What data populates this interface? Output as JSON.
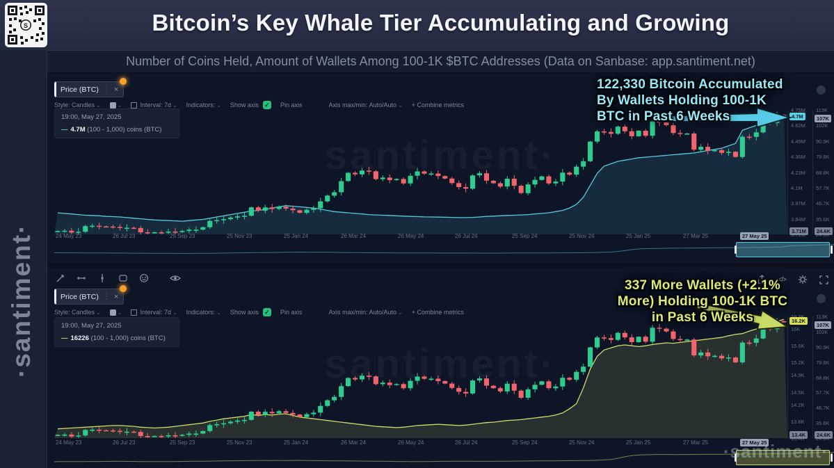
{
  "header": {
    "title": "Bitcoin’s Key Whale Tier Accumulating and Growing"
  },
  "subtitle": "Number of Coins Held, Amount of Wallets Among 100-1K $BTC Addresses (Data on Sanbase: app.santiment.net)",
  "sidebar": {
    "brand": "·santiment·"
  },
  "watermarks": {
    "center": "santiment·",
    "corner": "·santiment·"
  },
  "toolbar": {
    "style": "Style: Candles",
    "interval": "Interval: 7d",
    "indicators": "Indicators:",
    "show_axis": "Show axis",
    "check": "✓",
    "pin_axis": "Pin axis",
    "axis_maxmin": "Axis max/min: Auto/Auto",
    "combine": "+   Combine metrics",
    "chevron": "⌄"
  },
  "charts": {
    "top": {
      "tab_label": "Price (BTC)",
      "tab_close": "×",
      "tab_dots": "⋮",
      "tooltip": {
        "date": "19:00, May 27, 2025",
        "dash": "—",
        "value": "4.7M",
        "suffix": "(100 - 1,000) coins (BTC)"
      }
    },
    "bottom": {
      "tab_label": "Price (BTC)",
      "tab_close": "×",
      "tab_dots": "⋮",
      "tooltip": {
        "date": "19:00, May 27, 2025",
        "dash": "—",
        "value": "16226",
        "suffix": "(100 - 1,000) coins (BTC)"
      }
    }
  },
  "annotations": {
    "top": {
      "lines": [
        "122,330 Bitcoin Accumulated",
        "By Wallets Holding 100-1K",
        "BTC in Past 6 Weeks"
      ]
    },
    "bottom": {
      "lines": [
        "337 More Wallets (+2.1%",
        "More) Holding 100-1K BTC",
        "in Past 6 Weeks"
      ]
    }
  },
  "chart_data": [
    {
      "type": "candlestick+line",
      "title": "Price (BTC) candles with (100 - 1,000) coins held overlay",
      "interval": "7d",
      "x_labels": [
        "24 May 23",
        "26 Jul 23",
        "25 Sep 23",
        "25 Nov 23",
        "25 Jan 24",
        "26 Mar 24",
        "26 May 24",
        "26 Jul 24",
        "25 Sep 24",
        "25 Nov 24",
        "25 Jan 25",
        "27 Mar 25"
      ],
      "x_current": "27 May 25",
      "price_series": {
        "name": "Price (BTC)",
        "unit": "K USD",
        "closes": [
          26.9,
          27.2,
          25.8,
          26.5,
          30.5,
          30.7,
          30.3,
          30.2,
          29.9,
          29.2,
          29.3,
          29.1,
          26.1,
          26.0,
          26.1,
          25.8,
          26.6,
          26.5,
          27.0,
          27.9,
          27.9,
          29.7,
          34.1,
          34.7,
          35.4,
          36.5,
          37.4,
          37.8,
          43.8,
          41.4,
          43.7,
          42.6,
          44.2,
          42.9,
          41.7,
          39.9,
          42.0,
          43.1,
          48.0,
          52.1,
          54.5,
          62.4,
          68.3,
          67.2,
          69.9,
          69.4,
          63.8,
          64.9,
          63.1,
          63.9,
          60.8,
          66.2,
          69.3,
          67.7,
          67.8,
          66.0,
          64.2,
          61.0,
          58.2,
          57.0,
          66.5,
          68.0,
          62.7,
          60.9,
          58.5,
          64.1,
          59.1,
          53.9,
          60.0,
          63.3,
          65.8,
          60.8,
          62.1,
          68.4,
          67.0,
          72.7,
          76.5,
          90.5,
          97.7,
          97.3,
          96.0,
          101.1,
          97.8,
          94.3,
          98.2,
          94.6,
          104.8,
          104.1,
          102.1,
          96.6,
          96.2,
          96.2,
          84.7,
          86.8,
          84.0,
          84.4,
          82.5,
          83.2,
          79.6,
          94.0,
          93.8,
          97.0,
          106.8,
          103.7,
          109.5,
          109.0
        ]
      },
      "price_axis": {
        "range": [
          24.6,
          113
        ],
        "tick_values": [
          113,
          102,
          90.9,
          79.8,
          68.8,
          57.7,
          46.7,
          35.6,
          24.6
        ],
        "tick_labels": [
          "113K",
          "102K",
          "90.9K",
          "79.8K",
          "68.8K",
          "57.7K",
          "46.7K",
          "35.6K",
          "24.6K"
        ],
        "current_value": 107,
        "current_label": "107K",
        "floor_label": "24.6K"
      },
      "metric_series": {
        "name": "(100 - 1,000) coins (BTC)",
        "unit": "M BTC",
        "current_label": "4.7M",
        "values": [
          3.89,
          3.885,
          3.88,
          3.875,
          3.87,
          3.868,
          3.865,
          3.86,
          3.858,
          3.855,
          3.85,
          3.845,
          3.84,
          3.835,
          3.83,
          3.828,
          3.825,
          3.823,
          3.82,
          3.825,
          3.83,
          3.835,
          3.845,
          3.855,
          3.865,
          3.875,
          3.885,
          3.895,
          3.905,
          3.91,
          3.92,
          3.93,
          3.94,
          3.95,
          3.945,
          3.94,
          3.935,
          3.93,
          3.92,
          3.91,
          3.9,
          3.895,
          3.89,
          3.885,
          3.88,
          3.875,
          3.872,
          3.87,
          3.868,
          3.865,
          3.862,
          3.86,
          3.858,
          3.856,
          3.855,
          3.854,
          3.853,
          3.852,
          3.85,
          3.85,
          3.852,
          3.855,
          3.86,
          3.862,
          3.865,
          3.868,
          3.87,
          3.872,
          3.875,
          3.88,
          3.885,
          3.89,
          3.9,
          3.91,
          3.93,
          3.96,
          4.02,
          4.12,
          4.22,
          4.28,
          4.3,
          4.32,
          4.33,
          4.34,
          4.35,
          4.355,
          4.36,
          4.365,
          4.37,
          4.375,
          4.38,
          4.385,
          4.39,
          4.4,
          4.41,
          4.42,
          4.43,
          4.45,
          4.47,
          4.58,
          4.6,
          4.62,
          4.65,
          4.67,
          4.69,
          4.7
        ]
      },
      "metric_axis": {
        "range": [
          3.71,
          4.75
        ],
        "tick_values": [
          4.75,
          4.62,
          4.49,
          4.36,
          4.23,
          4.1,
          3.97,
          3.84,
          3.71
        ],
        "tick_labels": [
          "4.75M",
          "4.62M",
          "4.49M",
          "4.36M",
          "4.23M",
          "4.1M",
          "3.97M",
          "3.84M",
          "3.71M"
        ],
        "current_value": 4.7,
        "current_label": "4.7M",
        "floor_label": "3.71M"
      },
      "colors": {
        "up": "#2ecd8f",
        "down": "#f2646b",
        "metric": "#58c8dd",
        "metric_fill": "rgba(88,200,221,0.13)",
        "chip_metric_bg": "#5ad0e4",
        "chip_price_bg": "#99a2b3",
        "brush": "#58c8dd",
        "brush_fill": "rgba(88,170,190,0.45)"
      }
    },
    {
      "type": "candlestick+line",
      "title": "Price (BTC) candles with amount of wallets holding (100 - 1,000) coins overlay",
      "interval": "7d",
      "x_labels": [
        "24 May 23",
        "26 Jul 23",
        "25 Sep 23",
        "25 Nov 23",
        "25 Jan 24",
        "26 Mar 24",
        "26 May 24",
        "26 Jul 24",
        "25 Sep 24",
        "25 Nov 24",
        "25 Jan 25",
        "27 Mar 25"
      ],
      "x_current": "27 May 25",
      "price_series": {
        "name": "Price (BTC)",
        "unit": "K USD",
        "closes": [
          26.9,
          27.2,
          25.8,
          26.5,
          30.5,
          30.7,
          30.3,
          30.2,
          29.9,
          29.2,
          29.3,
          29.1,
          26.1,
          26.0,
          26.1,
          25.8,
          26.6,
          26.5,
          27.0,
          27.9,
          27.9,
          29.7,
          34.1,
          34.7,
          35.4,
          36.5,
          37.4,
          37.8,
          43.8,
          41.4,
          43.7,
          42.6,
          44.2,
          42.9,
          41.7,
          39.9,
          42.0,
          43.1,
          48.0,
          52.1,
          54.5,
          62.4,
          68.3,
          67.2,
          69.9,
          69.4,
          63.8,
          64.9,
          63.1,
          63.9,
          60.8,
          66.2,
          69.3,
          67.7,
          67.8,
          66.0,
          64.2,
          61.0,
          58.2,
          57.0,
          66.5,
          68.0,
          62.7,
          60.9,
          58.5,
          64.1,
          59.1,
          53.9,
          60.0,
          63.3,
          65.8,
          60.8,
          62.1,
          68.4,
          67.0,
          72.7,
          76.5,
          90.5,
          97.7,
          97.3,
          96.0,
          101.1,
          97.8,
          94.3,
          98.2,
          94.6,
          104.8,
          104.1,
          102.1,
          96.6,
          96.2,
          96.2,
          84.7,
          86.8,
          84.0,
          84.4,
          82.5,
          83.2,
          79.6,
          94.0,
          93.8,
          97.0,
          106.8,
          103.7,
          109.5,
          109.0
        ]
      },
      "price_axis": {
        "range": [
          24.6,
          113
        ],
        "tick_values": [
          113,
          102,
          90.9,
          79.8,
          68.8,
          57.7,
          46.7,
          35.6,
          24.6
        ],
        "tick_labels": [
          "113K",
          "102K",
          "90.9K",
          "79.8K",
          "68.8K",
          "57.7K",
          "46.7K",
          "35.6K",
          "24.6K"
        ],
        "current_value": 107,
        "current_label": "107K",
        "floor_label": "24.6K"
      },
      "metric_series": {
        "name": "(100 - 1,000) coins (BTC) wallets",
        "unit": "K wallets",
        "current_label": "16.2K",
        "values": [
          13.62,
          13.63,
          13.64,
          13.65,
          13.66,
          13.67,
          13.68,
          13.69,
          13.7,
          13.7,
          13.69,
          13.68,
          13.66,
          13.65,
          13.64,
          13.65,
          13.66,
          13.68,
          13.7,
          13.72,
          13.74,
          13.76,
          13.8,
          13.83,
          13.86,
          13.88,
          13.9,
          13.92,
          13.96,
          13.94,
          13.96,
          13.95,
          13.97,
          13.98,
          13.94,
          13.9,
          13.88,
          13.86,
          13.84,
          13.82,
          13.8,
          13.78,
          13.76,
          13.74,
          13.72,
          13.7,
          13.68,
          13.67,
          13.66,
          13.65,
          13.66,
          13.68,
          13.7,
          13.71,
          13.72,
          13.73,
          13.72,
          13.71,
          13.7,
          13.71,
          13.73,
          13.75,
          13.77,
          13.78,
          13.8,
          13.82,
          13.83,
          13.84,
          13.86,
          13.88,
          13.9,
          13.92,
          13.95,
          14.0,
          14.1,
          14.22,
          14.6,
          15.05,
          15.35,
          15.5,
          15.55,
          15.6,
          15.62,
          15.6,
          15.58,
          15.6,
          15.63,
          15.65,
          15.67,
          15.66,
          15.68,
          15.7,
          15.72,
          15.74,
          15.76,
          15.78,
          15.8,
          15.84,
          15.87,
          15.89,
          15.95,
          16.0,
          16.06,
          16.12,
          16.18,
          16.23
        ]
      },
      "metric_axis": {
        "range": [
          13.4,
          16.3
        ],
        "tick_values": [
          16.3,
          16,
          15.6,
          15.2,
          14.9,
          14.5,
          14.2,
          13.8,
          13.4
        ],
        "tick_labels": [
          "16.3K",
          "16K",
          "15.6K",
          "15.2K",
          "14.9K",
          "14.5K",
          "14.2K",
          "13.8K",
          "13.4K"
        ],
        "current_value": 16.2,
        "current_label": "16.2K",
        "floor_label": "13.4K"
      },
      "colors": {
        "up": "#2ecd8f",
        "down": "#f2646b",
        "metric": "#cfdc6a",
        "metric_fill": "rgba(207,220,106,0.14)",
        "chip_metric_bg": "#d6e24e",
        "chip_price_bg": "#99a2b3",
        "brush": "#cfdc6a",
        "brush_fill": "rgba(160,170,70,0.40)"
      }
    }
  ]
}
